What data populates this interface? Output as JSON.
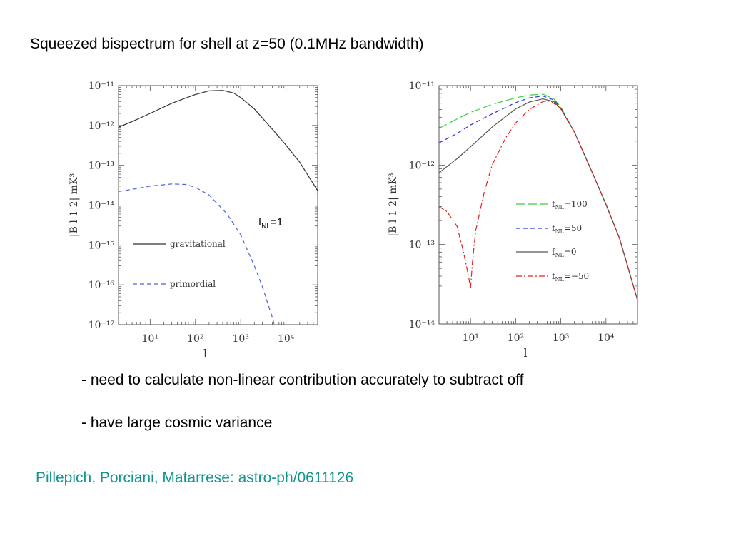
{
  "slide": {
    "title": "Squeezed bispectrum for shell at z=50 (0.1MHz bandwidth)",
    "bullets": [
      "- need to calculate non-linear contribution accurately to subtract off",
      "- have large cosmic variance"
    ],
    "citation": "Pillepich, Porciani, Matarrese: astro-ph/0611126",
    "annotation": {
      "base": "f",
      "sub": "NL",
      "tail": "=1"
    },
    "colors": {
      "citation": "#14948c"
    }
  },
  "chart_data": [
    {
      "type": "line",
      "title": "",
      "xlabel": "l",
      "ylabel": "|B l 1 2|   mK³",
      "xscale": "log",
      "yscale": "log",
      "xlim": [
        2,
        50000
      ],
      "ylim": [
        1e-17,
        1e-11
      ],
      "xticks": [
        {
          "value": 10,
          "label": "10¹"
        },
        {
          "value": 100,
          "label": "10²"
        },
        {
          "value": 1000,
          "label": "10³"
        },
        {
          "value": 10000,
          "label": "10⁴"
        }
      ],
      "yticks": [
        {
          "value": 1e-11,
          "label": "10⁻¹¹"
        },
        {
          "value": 1e-12,
          "label": "10⁻¹²"
        },
        {
          "value": 1e-13,
          "label": "10⁻¹³"
        },
        {
          "value": 1e-14,
          "label": "10⁻¹⁴"
        },
        {
          "value": 1e-15,
          "label": "10⁻¹⁵"
        },
        {
          "value": 1e-16,
          "label": "10⁻¹⁶"
        },
        {
          "value": 1e-17,
          "label": "10⁻¹⁷"
        }
      ],
      "legend_position": "left",
      "series": [
        {
          "name": "gravitational",
          "color": "#333333",
          "dash": "solid",
          "x": [
            2,
            5,
            10,
            30,
            100,
            200,
            400,
            700,
            1000,
            2000,
            5000,
            10000,
            20000,
            50000
          ],
          "y": [
            9e-13,
            1.4e-12,
            2e-12,
            3.6e-12,
            6e-12,
            7.4e-12,
            7.6e-12,
            6.5e-12,
            5e-12,
            2.6e-12,
            8e-13,
            3.2e-13,
            1.2e-13,
            2.3e-14
          ]
        },
        {
          "name": "primordial",
          "color": "#4a62e0",
          "dash": "dashed",
          "x": [
            2,
            5,
            10,
            30,
            60,
            100,
            200,
            500,
            1000,
            2000,
            3000,
            5000,
            5500
          ],
          "y": [
            2.2e-14,
            2.6e-14,
            3e-14,
            3.4e-14,
            3.3e-14,
            2.8e-14,
            1.8e-14,
            6e-15,
            1.8e-15,
            3e-16,
            9e-17,
            1.5e-17,
            1e-17
          ]
        }
      ]
    },
    {
      "type": "line",
      "title": "",
      "xlabel": "l",
      "ylabel": "|B l 1 2|   mK³",
      "xscale": "log",
      "yscale": "log",
      "xlim": [
        2,
        50000
      ],
      "ylim": [
        1e-14,
        1e-11
      ],
      "xticks": [
        {
          "value": 10,
          "label": "10¹"
        },
        {
          "value": 100,
          "label": "10²"
        },
        {
          "value": 1000,
          "label": "10³"
        },
        {
          "value": 10000,
          "label": "10⁴"
        }
      ],
      "yticks": [
        {
          "value": 1e-11,
          "label": "10⁻¹¹"
        },
        {
          "value": 1e-12,
          "label": "10⁻¹²"
        },
        {
          "value": 1e-13,
          "label": "10⁻¹³"
        },
        {
          "value": 1e-14,
          "label": "10⁻¹⁴"
        }
      ],
      "legend_position": "right",
      "series": [
        {
          "name": "f_NL=100",
          "label_base": "f",
          "label_sub": "NL",
          "label_tail": "=100",
          "color": "#3ad13a",
          "dash": "longdash",
          "x": [
            2,
            5,
            10,
            30,
            100,
            200,
            400,
            700,
            1000,
            2000,
            5000,
            10000,
            20000,
            50000
          ],
          "y": [
            2.9e-12,
            3.8e-12,
            4.6e-12,
            5.8e-12,
            7e-12,
            7.6e-12,
            7.8e-12,
            6.8e-12,
            5.4e-12,
            2.6e-12,
            8e-13,
            3.2e-13,
            1.2e-13,
            2e-14
          ]
        },
        {
          "name": "f_NL=50",
          "label_base": "f",
          "label_sub": "NL",
          "label_tail": "=50",
          "color": "#2a3ad6",
          "dash": "dashed",
          "x": [
            2,
            5,
            10,
            30,
            100,
            200,
            400,
            700,
            1000,
            2000,
            5000,
            10000,
            20000,
            50000
          ],
          "y": [
            1.9e-12,
            2.5e-12,
            3.2e-12,
            4.4e-12,
            6.1e-12,
            7e-12,
            7.4e-12,
            6.6e-12,
            5.2e-12,
            2.6e-12,
            8e-13,
            3.2e-13,
            1.2e-13,
            2e-14
          ]
        },
        {
          "name": "f_NL=0",
          "label_base": "f",
          "label_sub": "NL",
          "label_tail": "=0",
          "color": "#555555",
          "dash": "solid",
          "x": [
            2,
            5,
            10,
            30,
            100,
            200,
            400,
            700,
            1000,
            2000,
            5000,
            10000,
            20000,
            50000
          ],
          "y": [
            8e-13,
            1.2e-12,
            1.7e-12,
            3e-12,
            5.1e-12,
            6.2e-12,
            6.8e-12,
            6.3e-12,
            5.1e-12,
            2.6e-12,
            8e-13,
            3.2e-13,
            1.2e-13,
            2e-14
          ]
        },
        {
          "name": "f_NL=-50",
          "label_base": "f",
          "label_sub": "NL",
          "label_tail": "=−50",
          "color": "#e02020",
          "dash": "dashdot",
          "x": [
            2,
            3,
            5,
            7,
            9,
            10,
            11,
            13,
            20,
            30,
            60,
            100,
            200,
            400,
            600,
            1000,
            2000,
            5000,
            10000,
            20000,
            50000
          ],
          "y": [
            3e-13,
            2.6e-13,
            1.7e-13,
            8e-14,
            4e-14,
            2.8e-14,
            6e-14,
            1.5e-13,
            4.5e-13,
            1e-12,
            2.2e-12,
            3.4e-12,
            5e-12,
            6.3e-12,
            6.4e-12,
            5.1e-12,
            2.6e-12,
            8e-13,
            3.2e-13,
            1.2e-13,
            2e-14
          ]
        }
      ]
    }
  ]
}
